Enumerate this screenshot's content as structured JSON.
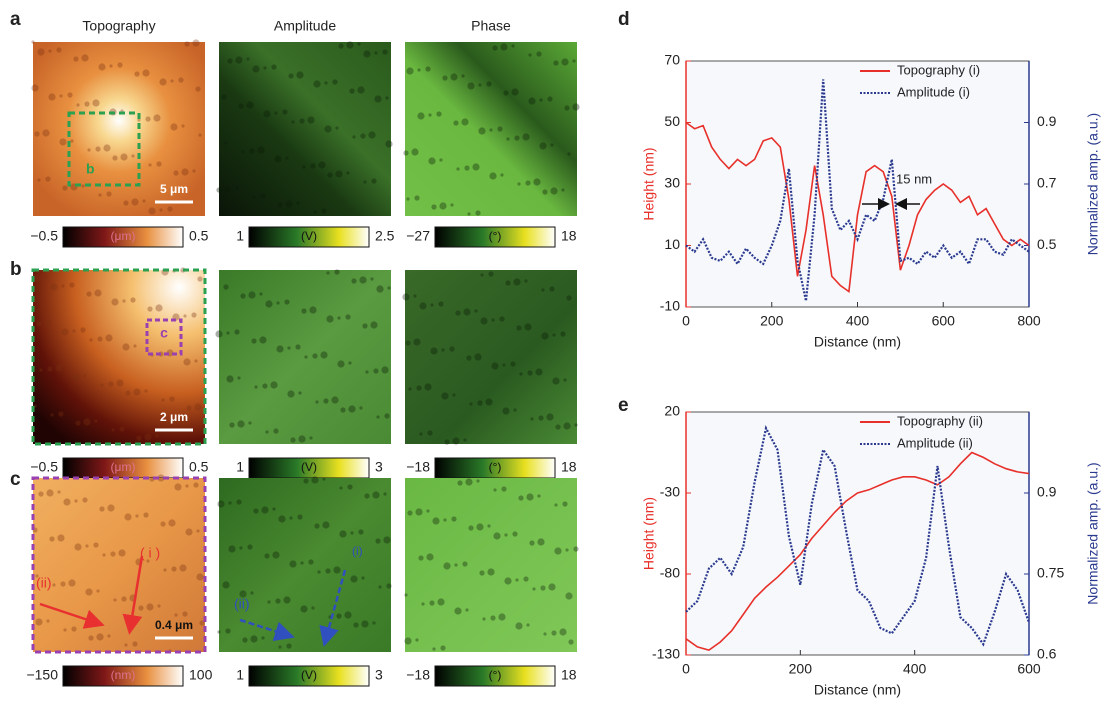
{
  "column_titles": [
    "Topography",
    "Amplitude",
    "Phase"
  ],
  "rows": [
    {
      "label": "a",
      "scale_bar": "5 μm",
      "annotations": [
        "b"
      ],
      "colorbars": [
        {
          "min": "−0.5",
          "unit": "(μm)",
          "max": "0.5"
        },
        {
          "min": "1",
          "unit": "(V)",
          "max": "2.5"
        },
        {
          "min": "−27",
          "unit": "(°)",
          "max": "18"
        }
      ]
    },
    {
      "label": "b",
      "scale_bar": "2 μm",
      "annotations": [
        "c"
      ],
      "colorbars": [
        {
          "min": "−0.5",
          "unit": "(μm)",
          "max": "0.5"
        },
        {
          "min": "1",
          "unit": "(V)",
          "max": "3"
        },
        {
          "min": "−18",
          "unit": "(°)",
          "max": "18"
        }
      ]
    },
    {
      "label": "c",
      "scale_bar": "0.4 μm",
      "annotations": [
        "( i )",
        "(ii)",
        "(i)",
        "(ii)"
      ],
      "colorbars": [
        {
          "min": "−150",
          "unit": "(nm)",
          "max": "100"
        },
        {
          "min": "1",
          "unit": "(V)",
          "max": "3"
        },
        {
          "min": "−18",
          "unit": "(°)",
          "max": "18"
        }
      ]
    }
  ],
  "chart_data": [
    {
      "type": "line",
      "panel_label": "d",
      "xlabel": "Distance (nm)",
      "ylabel": "Height (nm)",
      "y2label": "Normalized amp. (a.u.)",
      "annotation": "15 nm",
      "x": [
        0,
        20,
        40,
        60,
        80,
        100,
        120,
        140,
        160,
        180,
        200,
        220,
        240,
        260,
        280,
        300,
        320,
        340,
        360,
        380,
        400,
        420,
        440,
        460,
        480,
        500,
        520,
        540,
        560,
        580,
        600,
        620,
        640,
        660,
        680,
        700,
        720,
        740,
        760,
        780,
        800
      ],
      "xlim": [
        0,
        800
      ],
      "xticks": [
        0,
        200,
        400,
        600,
        800
      ],
      "ylim": [
        -10,
        70
      ],
      "yticks": [
        -10,
        10,
        30,
        50,
        70
      ],
      "y2lim": [
        0.3,
        1.1
      ],
      "y2ticks": [
        0.5,
        0.7,
        0.9
      ],
      "series": [
        {
          "name": "Topography (i)",
          "color": "#e8302a",
          "values": [
            50,
            48,
            49,
            42,
            38,
            35,
            38,
            36,
            38,
            44,
            45,
            42,
            25,
            0,
            15,
            36,
            20,
            0,
            -3,
            -5,
            20,
            34,
            36,
            34,
            26,
            2,
            10,
            20,
            25,
            28,
            30,
            28,
            24,
            26,
            20,
            22,
            17,
            12,
            10,
            12,
            10
          ]
        },
        {
          "name": "Amplitude (i)",
          "color": "#2b3a8f",
          "axis": "y2",
          "values": [
            0.5,
            0.48,
            0.52,
            0.46,
            0.45,
            0.48,
            0.44,
            0.49,
            0.46,
            0.44,
            0.5,
            0.58,
            0.75,
            0.45,
            0.32,
            0.6,
            1.04,
            0.62,
            0.55,
            0.58,
            0.52,
            0.6,
            0.58,
            0.65,
            0.78,
            0.45,
            0.46,
            0.44,
            0.48,
            0.46,
            0.5,
            0.46,
            0.48,
            0.44,
            0.52,
            0.52,
            0.48,
            0.47,
            0.52,
            0.5,
            0.48
          ]
        }
      ]
    },
    {
      "type": "line",
      "panel_label": "e",
      "xlabel": "Distance (nm)",
      "ylabel": "Height (nm)",
      "y2label": "Normalized amp. (a.u.)",
      "x": [
        0,
        20,
        40,
        60,
        80,
        100,
        120,
        140,
        160,
        180,
        200,
        220,
        240,
        260,
        280,
        300,
        320,
        340,
        360,
        380,
        400,
        420,
        440,
        460,
        480,
        500,
        520,
        540,
        560,
        580,
        600
      ],
      "xlim": [
        0,
        600
      ],
      "xticks": [
        0,
        200,
        400,
        600
      ],
      "ylim": [
        -130,
        20
      ],
      "yticks": [
        -130,
        -80,
        -30,
        20
      ],
      "y2lim": [
        0.6,
        1.05
      ],
      "y2ticks": [
        0.6,
        0.75,
        0.9
      ],
      "series": [
        {
          "name": "Topography (ii)",
          "color": "#e8302a",
          "values": [
            -120,
            -125,
            -127,
            -122,
            -115,
            -105,
            -95,
            -88,
            -82,
            -75,
            -68,
            -58,
            -50,
            -42,
            -35,
            -30,
            -28,
            -25,
            -22,
            -20,
            -20,
            -22,
            -25,
            -20,
            -12,
            -5,
            -8,
            -12,
            -15,
            -17,
            -18
          ]
        },
        {
          "name": "Amplitude (ii)",
          "color": "#2b3a8f",
          "axis": "y2",
          "values": [
            0.68,
            0.7,
            0.76,
            0.78,
            0.75,
            0.8,
            0.92,
            1.02,
            0.98,
            0.82,
            0.73,
            0.88,
            0.98,
            0.95,
            0.83,
            0.72,
            0.7,
            0.65,
            0.64,
            0.67,
            0.7,
            0.78,
            0.95,
            0.8,
            0.67,
            0.65,
            0.62,
            0.68,
            0.75,
            0.72,
            0.66
          ]
        }
      ]
    }
  ]
}
